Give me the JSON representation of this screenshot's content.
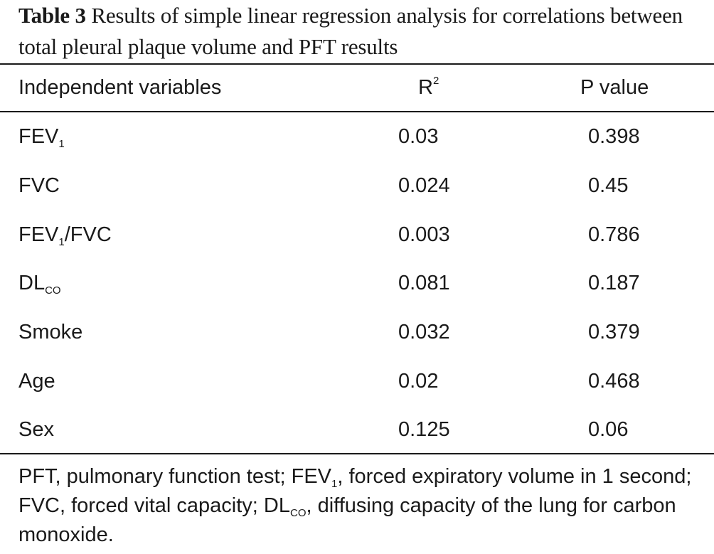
{
  "caption": {
    "label": "Table 3",
    "text": "Results of simple linear regression analysis for correlations between total pleural plaque volume and PFT results"
  },
  "table": {
    "headers": {
      "variable": "Independent variables",
      "r2_base": "R",
      "r2_sup": "2",
      "p": "P value"
    },
    "rows": [
      {
        "var_base": "FEV",
        "var_sub": "1",
        "var_tail": "",
        "r2": "0.03",
        "p": "0.398"
      },
      {
        "var_base": "FVC",
        "var_sub": "",
        "var_tail": "",
        "r2": "0.024",
        "p": "0.45"
      },
      {
        "var_base": "FEV",
        "var_sub": "1",
        "var_tail": "/FVC",
        "r2": "0.003",
        "p": "0.786"
      },
      {
        "var_base": "DL",
        "var_sub": "CO",
        "var_tail": "",
        "r2": "0.081",
        "p": "0.187"
      },
      {
        "var_base": "Smoke",
        "var_sub": "",
        "var_tail": "",
        "r2": "0.032",
        "p": "0.379"
      },
      {
        "var_base": "Age",
        "var_sub": "",
        "var_tail": "",
        "r2": "0.02",
        "p": "0.468"
      },
      {
        "var_base": "Sex",
        "var_sub": "",
        "var_tail": "",
        "r2": "0.125",
        "p": "0.06"
      }
    ]
  },
  "footnote": {
    "p1": "PFT, pulmonary function test; FEV",
    "s1": "1",
    "p2": ", forced expiratory volume in 1 second; FVC, forced vital capacity; DL",
    "s2": "CO",
    "p3": ", diffusing capacity of the lung for carbon monoxide."
  }
}
